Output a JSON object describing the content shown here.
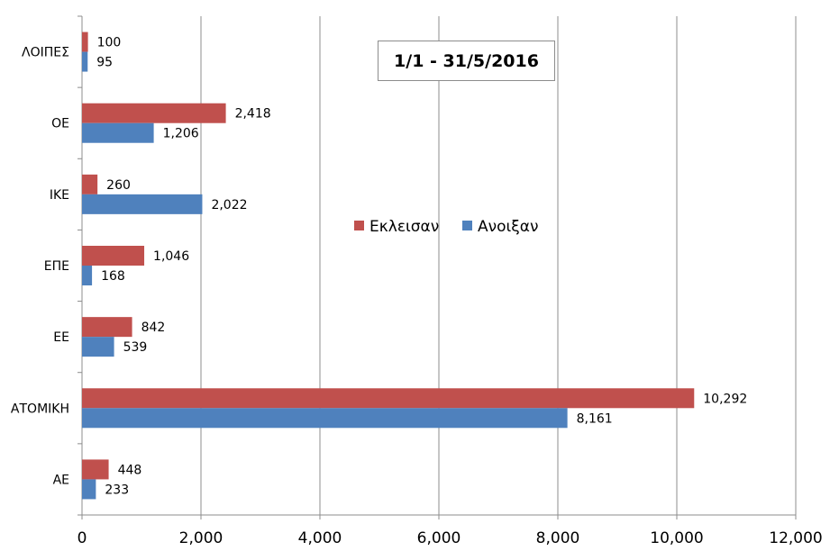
{
  "chart_data": {
    "type": "bar",
    "orientation": "horizontal",
    "title": "1/1 - 31/5/2016",
    "categories": [
      "ΛΟΙΠΕΣ",
      "ΟΕ",
      "ΙΚΕ",
      "ΕΠΕ",
      "ΕΕ",
      "ΑΤΟΜΙΚΗ",
      "ΑΕ"
    ],
    "series": [
      {
        "name": "Εκλεισαν",
        "color": "#c0504d",
        "values": [
          100,
          2418,
          260,
          1046,
          842,
          10292,
          448
        ],
        "labels": [
          "100",
          "2,418",
          "260",
          "1,046",
          "842",
          "10,292",
          "448"
        ]
      },
      {
        "name": "Ανοιξαν",
        "color": "#4f81bd",
        "values": [
          95,
          1206,
          2022,
          168,
          539,
          8161,
          233
        ],
        "labels": [
          "95",
          "1,206",
          "2,022",
          "168",
          "539",
          "8,161",
          "233"
        ]
      }
    ],
    "xlim": [
      0,
      12000
    ],
    "x_ticks": [
      "0",
      "2,000",
      "4,000",
      "6,000",
      "8,000",
      "10,000",
      "12,000"
    ],
    "grid": true,
    "legend_position": "center-right"
  }
}
